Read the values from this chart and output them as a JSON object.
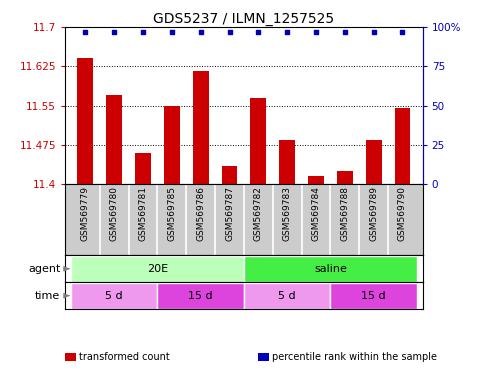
{
  "title": "GDS5237 / ILMN_1257525",
  "samples": [
    "GSM569779",
    "GSM569780",
    "GSM569781",
    "GSM569785",
    "GSM569786",
    "GSM569787",
    "GSM569782",
    "GSM569783",
    "GSM569784",
    "GSM569788",
    "GSM569789",
    "GSM569790"
  ],
  "bar_values": [
    11.64,
    11.57,
    11.46,
    11.55,
    11.615,
    11.435,
    11.565,
    11.485,
    11.415,
    11.425,
    11.485,
    11.545
  ],
  "ylim": [
    11.4,
    11.7
  ],
  "yticks": [
    11.4,
    11.475,
    11.55,
    11.625,
    11.7
  ],
  "right_yticks": [
    0,
    25,
    50,
    75,
    100
  ],
  "bar_color": "#cc0000",
  "dot_color": "#0000bb",
  "bar_bottom": 11.4,
  "agent_row": [
    {
      "label": "20E",
      "start": 0,
      "end": 6,
      "color": "#bbffbb"
    },
    {
      "label": "saline",
      "start": 6,
      "end": 12,
      "color": "#44ee44"
    }
  ],
  "time_row": [
    {
      "label": "5 d",
      "start": 0,
      "end": 3,
      "color": "#ee99ee"
    },
    {
      "label": "15 d",
      "start": 3,
      "end": 6,
      "color": "#dd44dd"
    },
    {
      "label": "5 d",
      "start": 6,
      "end": 9,
      "color": "#ee99ee"
    },
    {
      "label": "15 d",
      "start": 9,
      "end": 12,
      "color": "#dd44dd"
    }
  ],
  "legend_items": [
    {
      "label": "transformed count",
      "color": "#cc0000"
    },
    {
      "label": "percentile rank within the sample",
      "color": "#0000bb"
    }
  ],
  "background_color": "#ffffff",
  "title_fontsize": 10,
  "tick_fontsize": 7.5,
  "sample_fontsize": 6.5
}
